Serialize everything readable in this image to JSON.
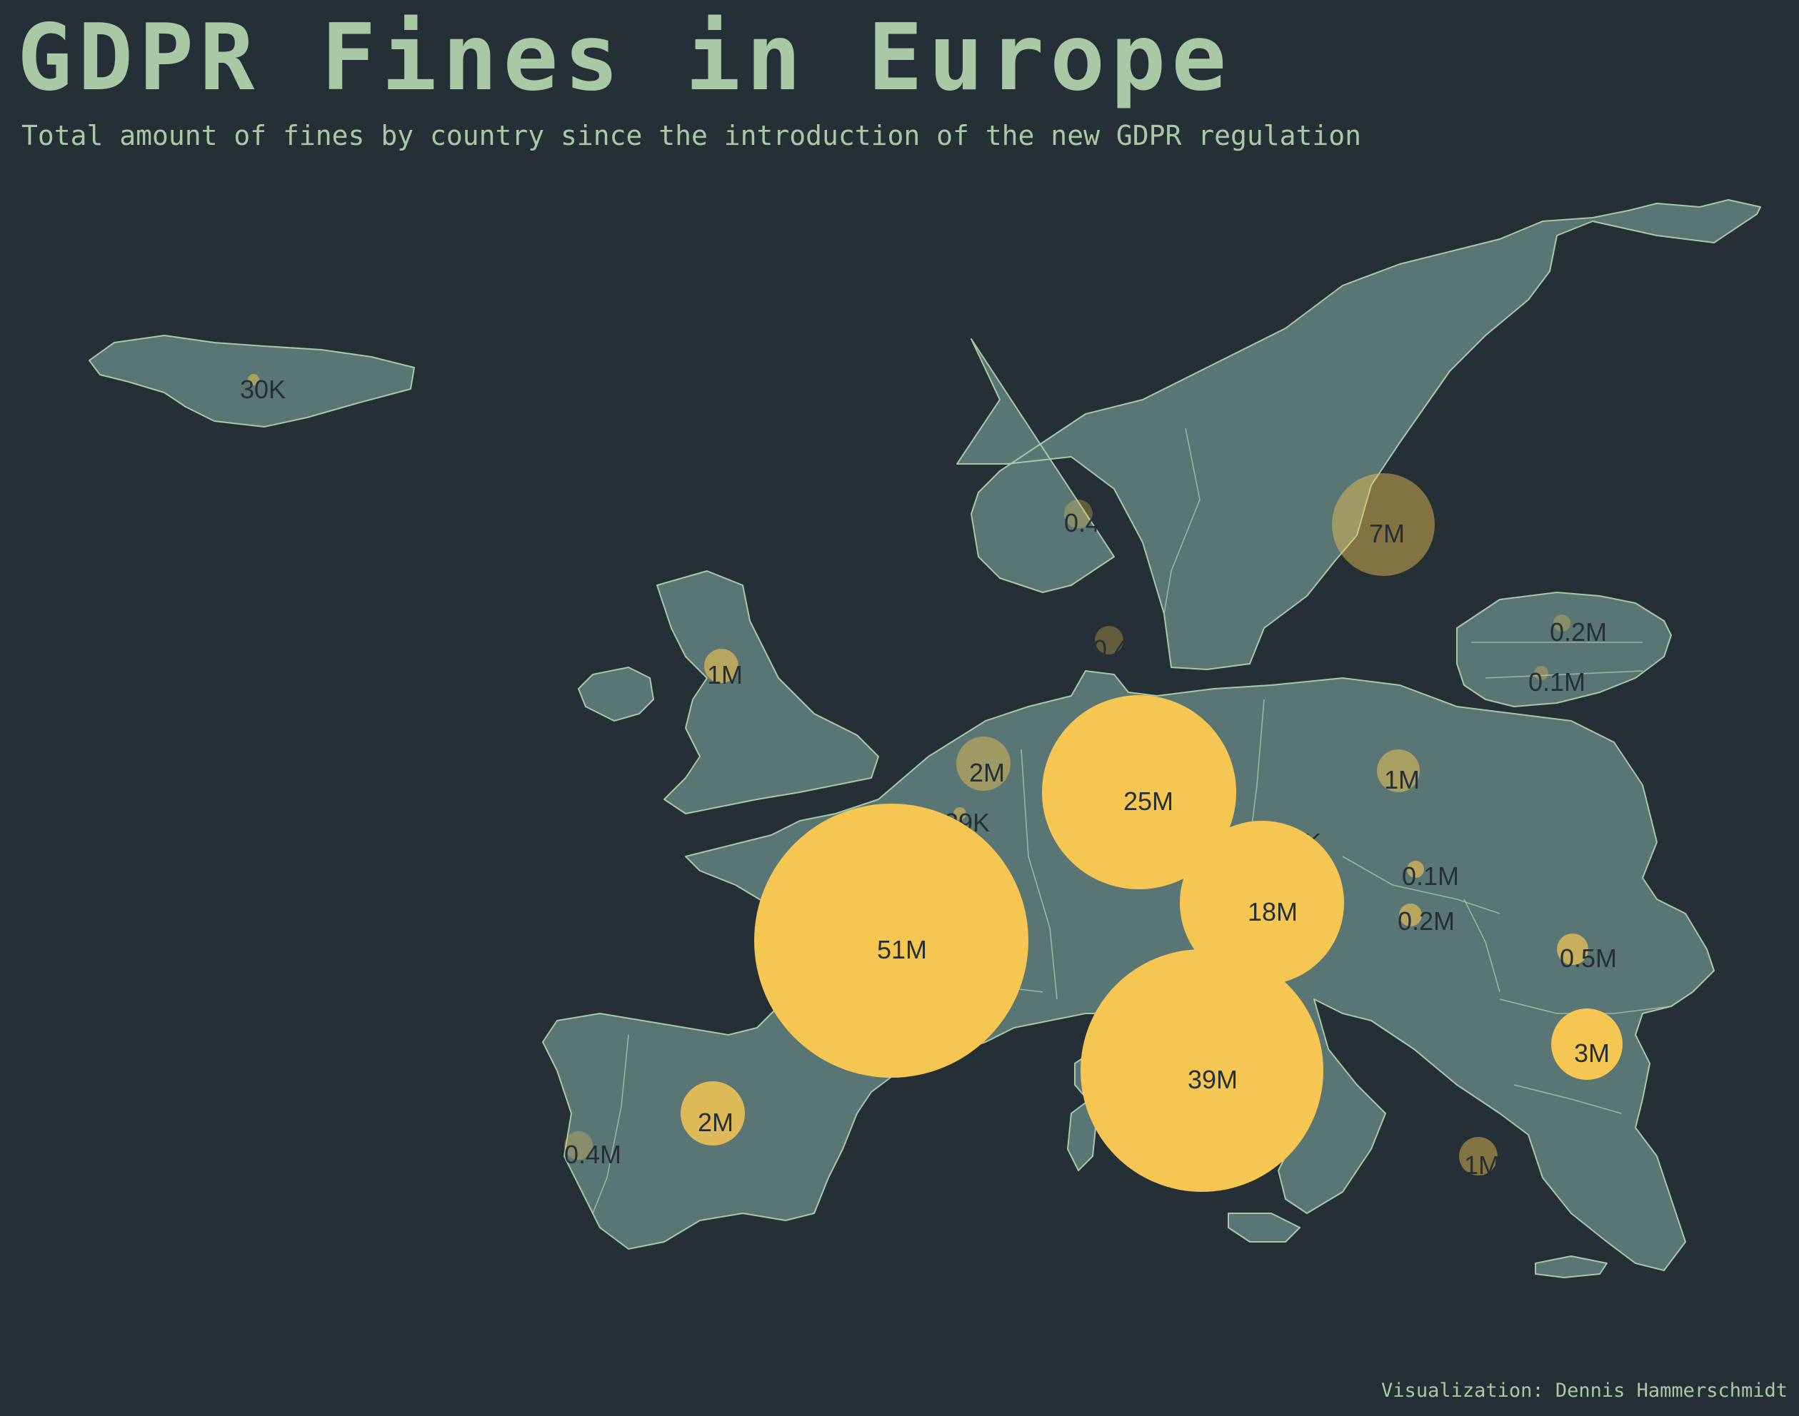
{
  "title": "GDPR Fines in Europe",
  "subtitle": "Total amount of fines by country since the introduction of the new GDPR regulation",
  "credit": "Visualization: Dennis Hammerschmidt",
  "colors": {
    "background": "#243035",
    "land": "#5a7674",
    "border": "#a9c8a6",
    "bubble": "#f5c752",
    "text": "#a9c8a6"
  },
  "bubbles": [
    {
      "name": "iceland",
      "label": "30K"
    },
    {
      "name": "norway",
      "label": "0.4M"
    },
    {
      "name": "sweden",
      "label": "7M"
    },
    {
      "name": "denmark",
      "label": "0.4M"
    },
    {
      "name": "estonia",
      "label": "0.2M"
    },
    {
      "name": "lithuania",
      "label": "0.1M"
    },
    {
      "name": "united-kingdom",
      "label": "1M"
    },
    {
      "name": "netherlands",
      "label": "2M"
    },
    {
      "name": "germany",
      "label": "25M"
    },
    {
      "name": "poland",
      "label": "1M"
    },
    {
      "name": "luxembourg",
      "label": "39K"
    },
    {
      "name": "czech-republic",
      "label": "32K"
    },
    {
      "name": "slovakia",
      "label": "0.1M"
    },
    {
      "name": "hungary",
      "label": "0.2M"
    },
    {
      "name": "austria",
      "label": "18M"
    },
    {
      "name": "france",
      "label": "51M"
    },
    {
      "name": "romania",
      "label": "0.5M"
    },
    {
      "name": "italy",
      "label": "39M"
    },
    {
      "name": "bulgaria",
      "label": "3M"
    },
    {
      "name": "spain",
      "label": "2M"
    },
    {
      "name": "portugal",
      "label": "0.4M"
    },
    {
      "name": "greece",
      "label": "1M"
    }
  ]
}
